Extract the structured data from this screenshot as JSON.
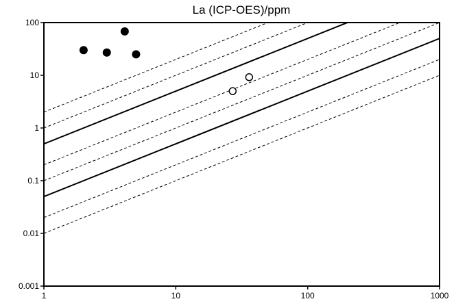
{
  "chart_data": {
    "type": "scatter",
    "title": "La (ICP-OES)/ppm",
    "xlabel": "",
    "ylabel": "",
    "x_scale": "log",
    "y_scale": "log",
    "xlim": [
      1,
      1000
    ],
    "ylim": [
      0.001,
      100
    ],
    "x_ticks": [
      1,
      10,
      100,
      1000
    ],
    "x_tick_labels": [
      "1",
      "10",
      "100",
      "1000"
    ],
    "y_ticks": [
      0.001,
      0.01,
      0.1,
      1,
      10,
      100
    ],
    "y_tick_labels": [
      "0.001",
      "0.01",
      "0.1",
      "1",
      "10",
      "100"
    ],
    "grid": false,
    "series": [
      {
        "marker": "filled-circle",
        "points": [
          [
            2,
            30
          ],
          [
            3,
            27
          ],
          [
            4.1,
            68
          ],
          [
            5,
            25
          ]
        ]
      },
      {
        "marker": "open-circle",
        "points": [
          [
            27,
            5
          ],
          [
            36,
            9.2
          ]
        ]
      }
    ],
    "reference_lines": [
      {
        "style": "solid",
        "y_at_x1": 0.5,
        "slope": 1
      },
      {
        "style": "solid",
        "y_at_x1": 0.05,
        "slope": 1
      },
      {
        "style": "dashed",
        "y_at_x1": 2,
        "slope": 1
      },
      {
        "style": "dashed",
        "y_at_x1": 1,
        "slope": 1
      },
      {
        "style": "dashed",
        "y_at_x1": 0.2,
        "slope": 1
      },
      {
        "style": "dashed",
        "y_at_x1": 0.1,
        "slope": 1
      },
      {
        "style": "dashed",
        "y_at_x1": 0.02,
        "slope": 1
      },
      {
        "style": "dashed",
        "y_at_x1": 0.01,
        "slope": 1
      }
    ]
  }
}
